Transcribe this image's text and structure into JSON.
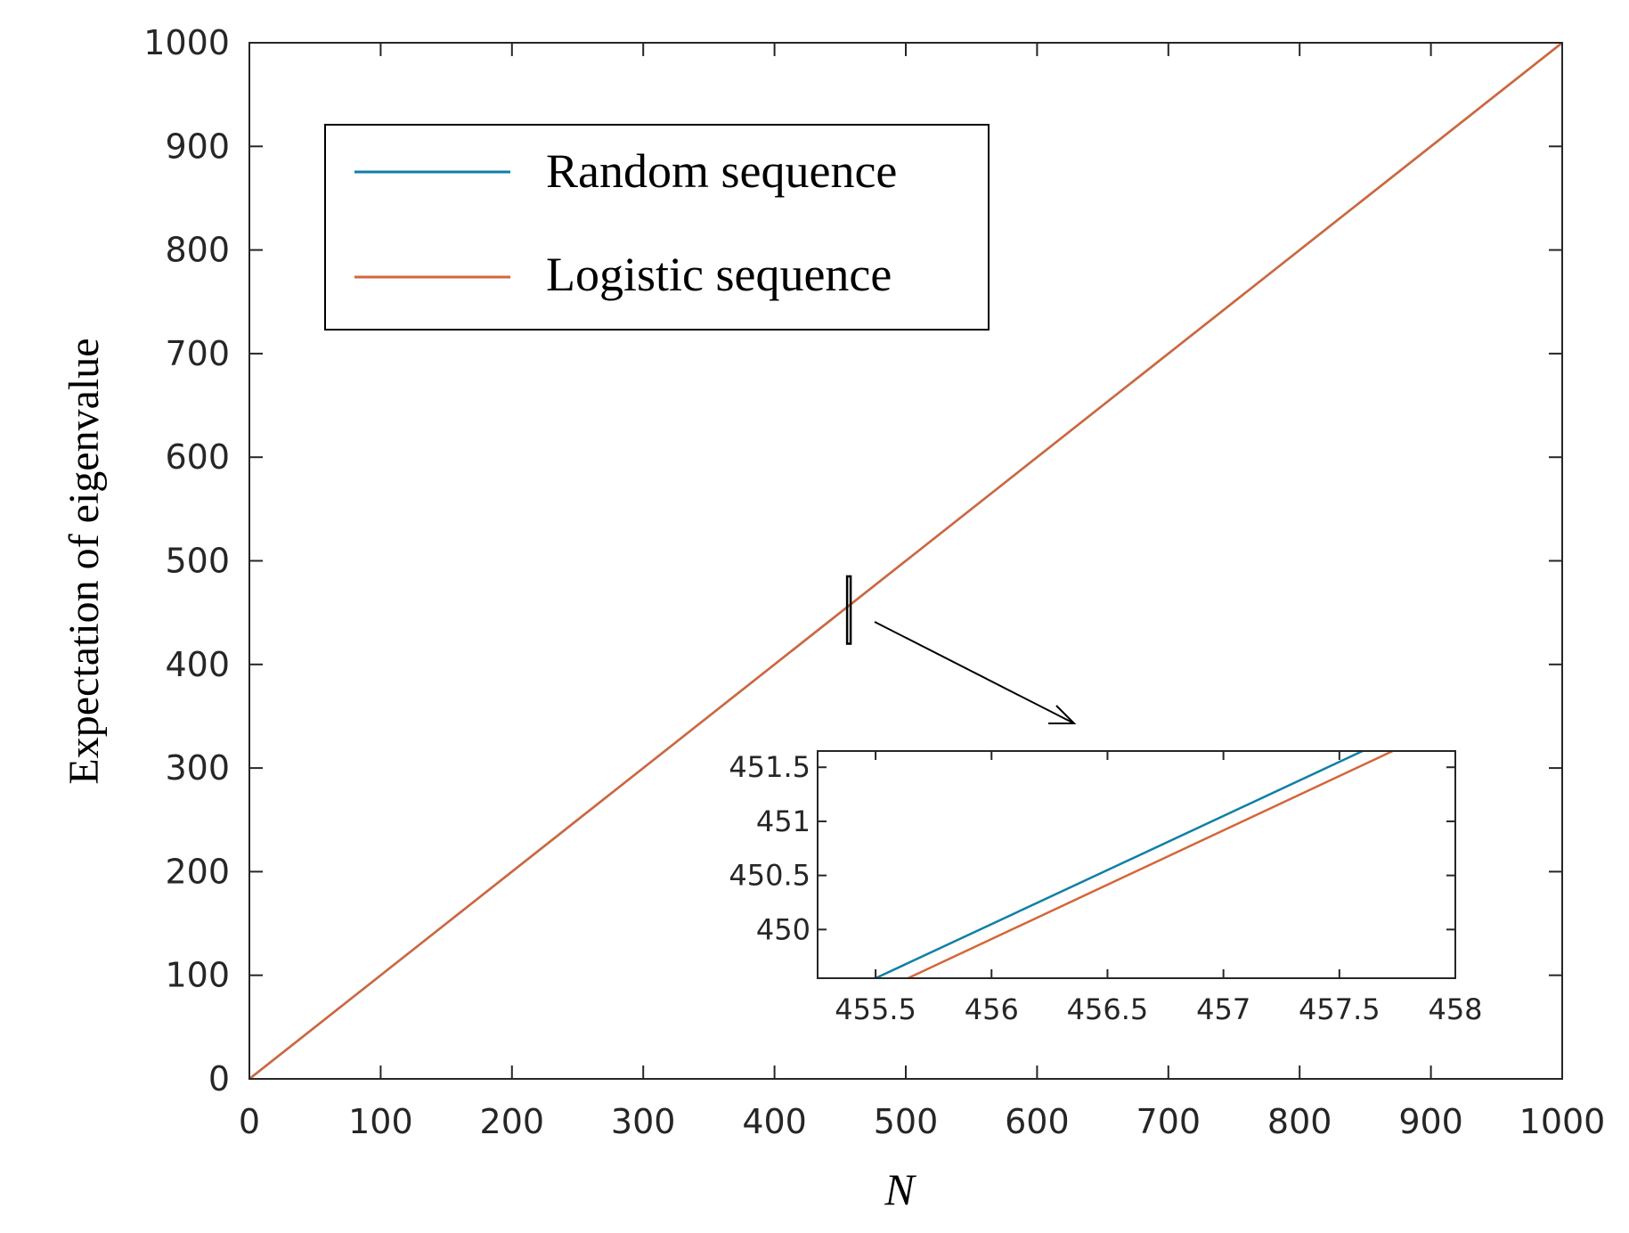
{
  "colors": {
    "random": "#0f7fa6",
    "logistic": "#d4663a",
    "axis": "#262626",
    "arrow": "#000000"
  },
  "chart_data": [
    {
      "type": "line",
      "title": "",
      "xlabel": "N",
      "ylabel": "Expectation of eigenvalue",
      "xlim": [
        0,
        1000
      ],
      "ylim": [
        0,
        1000
      ],
      "xticks": [
        0,
        100,
        200,
        300,
        400,
        500,
        600,
        700,
        800,
        900,
        1000
      ],
      "yticks": [
        0,
        100,
        200,
        300,
        400,
        500,
        600,
        700,
        800,
        900,
        1000
      ],
      "grid": false,
      "legend": {
        "placement": "top-left"
      },
      "series": [
        {
          "name": "Random sequence",
          "color": "#0f7fa6",
          "x": [
            0,
            1000
          ],
          "y": [
            0,
            1000
          ]
        },
        {
          "name": "Logistic sequence",
          "color": "#d4663a",
          "x": [
            0,
            1000
          ],
          "y": [
            0,
            1000
          ]
        }
      ],
      "annotations": [
        {
          "type": "zoom-box",
          "x_range": [
            455.3,
            458.0
          ],
          "y_range": [
            420,
            485
          ]
        }
      ]
    },
    {
      "type": "line",
      "title": "",
      "xlabel": "",
      "ylabel": "",
      "xlim": [
        455.25,
        458.0
      ],
      "ylim": [
        449.55,
        451.65
      ],
      "xticks": [
        455.5,
        456,
        456.5,
        457,
        457.5,
        458
      ],
      "xticklabels": [
        "455.5",
        "456",
        "456.5",
        "457",
        "457.5",
        "458"
      ],
      "yticks": [
        450,
        450.5,
        451,
        451.5
      ],
      "yticklabels": [
        "450",
        "450.5",
        "451",
        "451.5"
      ],
      "grid": false,
      "series": [
        {
          "name": "Random sequence",
          "color": "#0f7fa6",
          "x": [
            455.5,
            457.6
          ],
          "y": [
            449.55,
            451.65
          ]
        },
        {
          "name": "Logistic sequence",
          "color": "#d4663a",
          "x": [
            455.64,
            457.73
          ],
          "y": [
            449.55,
            451.65
          ]
        }
      ]
    }
  ]
}
